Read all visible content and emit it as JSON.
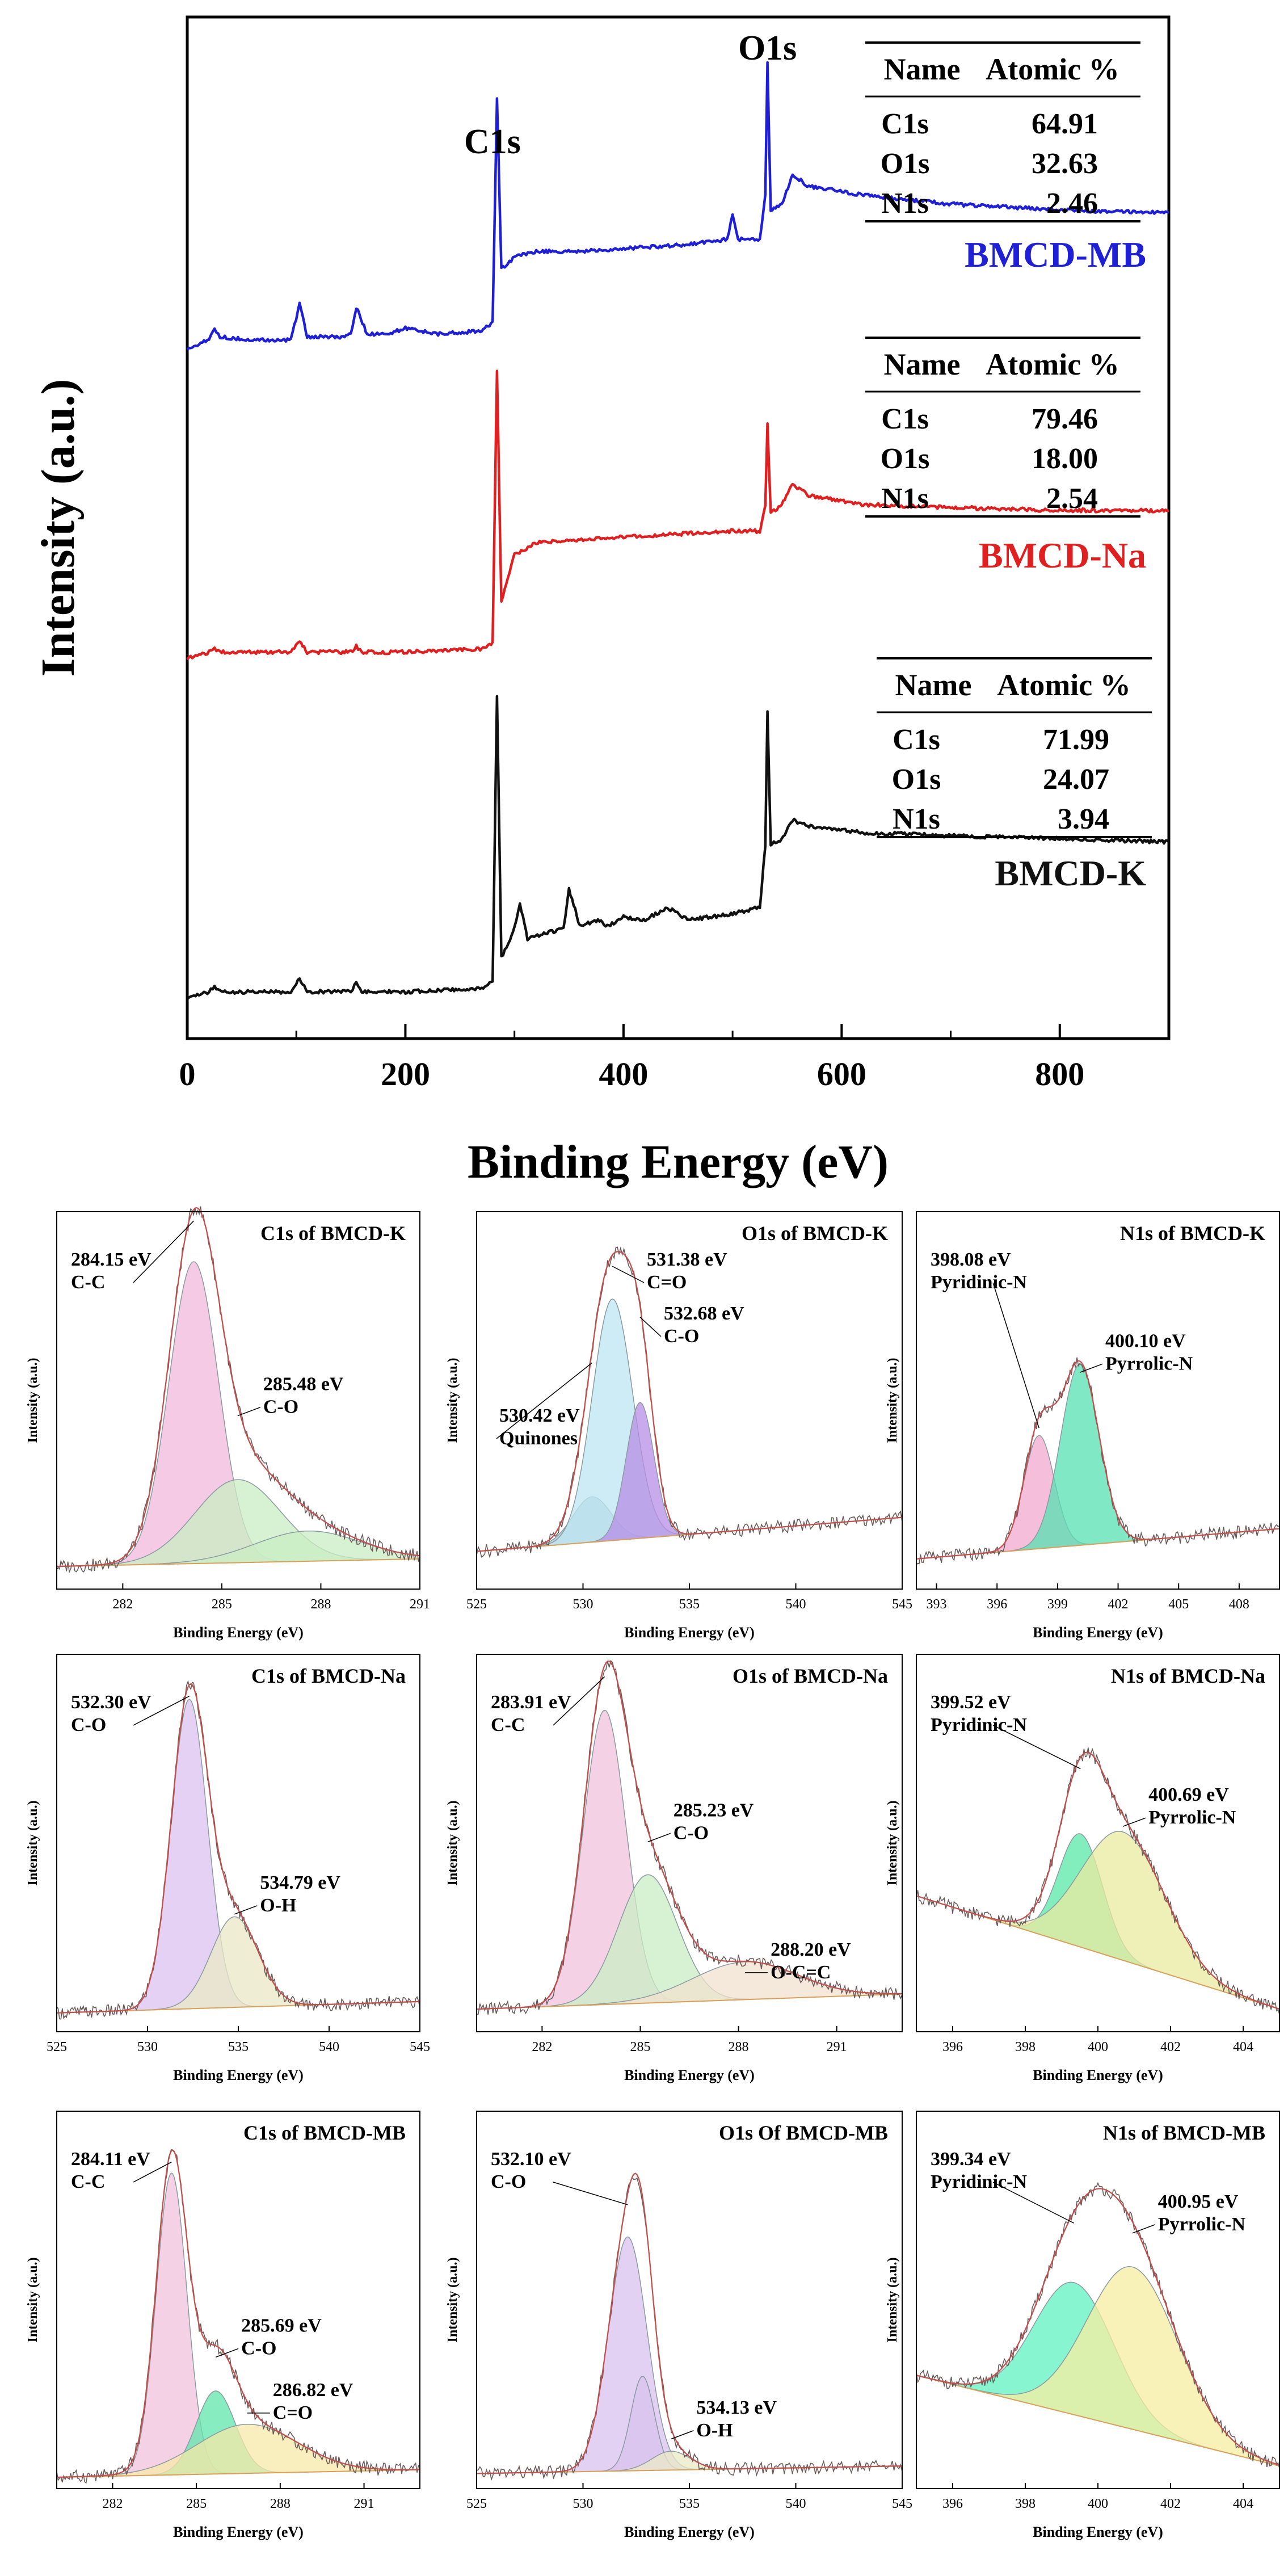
{
  "chart_data": [
    {
      "id": "survey",
      "type": "line",
      "xlabel": "Binding Energy (eV)",
      "ylabel": "Intensity (a.u.)",
      "xlim": [
        0,
        900
      ],
      "xticks": [
        0,
        200,
        400,
        600,
        800
      ],
      "grid": false,
      "peak_labels": [
        {
          "text": "C1s",
          "x": 285
        },
        {
          "text": "O1s",
          "x": 532
        }
      ],
      "series": [
        {
          "name": "BMCD-MB",
          "color": "#1f1fd6",
          "x": [
            0,
            20,
            25,
            30,
            60,
            95,
            103,
            110,
            140,
            150,
            155,
            165,
            185,
            200,
            230,
            270,
            280,
            284,
            288,
            300,
            320,
            360,
            400,
            450,
            495,
            500,
            505,
            525,
            530,
            532,
            535,
            545,
            555,
            570,
            620,
            700,
            800,
            900
          ],
          "y": [
            0.03,
            0.06,
            0.1,
            0.07,
            0.06,
            0.06,
            0.18,
            0.07,
            0.07,
            0.08,
            0.17,
            0.08,
            0.08,
            0.1,
            0.08,
            0.09,
            0.12,
            0.88,
            0.3,
            0.34,
            0.36,
            0.36,
            0.37,
            0.38,
            0.4,
            0.48,
            0.4,
            0.4,
            0.55,
            1.0,
            0.5,
            0.52,
            0.62,
            0.58,
            0.55,
            0.52,
            0.5,
            0.49
          ]
        },
        {
          "name": "BMCD-Na",
          "color": "#e02020",
          "x": [
            0,
            20,
            25,
            30,
            60,
            95,
            103,
            110,
            150,
            155,
            160,
            200,
            270,
            280,
            284,
            288,
            300,
            320,
            360,
            400,
            450,
            500,
            525,
            530,
            532,
            535,
            545,
            555,
            570,
            620,
            700,
            800,
            900
          ],
          "y": [
            0.03,
            0.05,
            0.06,
            0.05,
            0.05,
            0.05,
            0.09,
            0.05,
            0.05,
            0.07,
            0.05,
            0.05,
            0.06,
            0.08,
            1.0,
            0.22,
            0.38,
            0.42,
            0.43,
            0.44,
            0.45,
            0.46,
            0.46,
            0.55,
            0.82,
            0.52,
            0.55,
            0.62,
            0.58,
            0.55,
            0.54,
            0.53,
            0.53
          ]
        },
        {
          "name": "BMCD-K",
          "color": "#111111",
          "x": [
            0,
            20,
            25,
            30,
            60,
            95,
            103,
            110,
            150,
            155,
            160,
            200,
            270,
            280,
            284,
            288,
            296,
            300,
            305,
            312,
            330,
            345,
            350,
            360,
            378,
            385,
            400,
            420,
            440,
            460,
            500,
            525,
            530,
            532,
            535,
            545,
            555,
            570,
            620,
            700,
            800,
            900
          ],
          "y": [
            0.03,
            0.05,
            0.07,
            0.05,
            0.05,
            0.05,
            0.09,
            0.05,
            0.05,
            0.08,
            0.05,
            0.05,
            0.06,
            0.08,
            1.0,
            0.16,
            0.22,
            0.26,
            0.33,
            0.22,
            0.24,
            0.25,
            0.38,
            0.26,
            0.28,
            0.26,
            0.29,
            0.28,
            0.32,
            0.28,
            0.3,
            0.32,
            0.52,
            0.95,
            0.52,
            0.54,
            0.6,
            0.58,
            0.56,
            0.55,
            0.54,
            0.53
          ]
        }
      ],
      "tables": [
        {
          "sample": "BMCD-MB",
          "headers": [
            "Name",
            "Atomic %"
          ],
          "rows": [
            [
              "C1s",
              "64.91"
            ],
            [
              "O1s",
              "32.63"
            ],
            [
              "N1s",
              "2.46"
            ]
          ]
        },
        {
          "sample": "BMCD-Na",
          "headers": [
            "Name",
            "Atomic %"
          ],
          "rows": [
            [
              "C1s",
              "79.46"
            ],
            [
              "O1s",
              "18.00"
            ],
            [
              "N1s",
              "2.54"
            ]
          ]
        },
        {
          "sample": "BMCD-K",
          "headers": [
            "Name",
            "Atomic %"
          ],
          "rows": [
            [
              "C1s",
              "71.99"
            ],
            [
              "O1s",
              "24.07"
            ],
            [
              "N1s",
              "3.94"
            ]
          ]
        }
      ]
    },
    {
      "id": "c1s-k",
      "type": "line",
      "title": "C1s of BMCD-K",
      "xlabel": "Binding Energy (eV)",
      "ylabel": "Intensity (a.u.)",
      "xlim": [
        280,
        291
      ],
      "xticks": [
        282,
        285,
        288,
        291
      ],
      "baseline": {
        "a": 0.06,
        "b": 0.02
      },
      "components": [
        {
          "center": 284.15,
          "height": 0.8,
          "width": 0.75,
          "color": "#f2b8dc"
        },
        {
          "center": 285.48,
          "height": 0.22,
          "width": 1.3,
          "color": "#c9eec3"
        },
        {
          "center": 287.6,
          "height": 0.08,
          "width": 1.6,
          "color": "#c9eec3"
        }
      ],
      "annotations": [
        {
          "text": "284.15 eV",
          "sub": "C-C",
          "x": 284.15
        },
        {
          "text": "285.48 eV",
          "sub": "C-O",
          "x": 285.48
        }
      ]
    },
    {
      "id": "o1s-k",
      "type": "line",
      "title": "O1s of BMCD-K",
      "xlabel": "Binding Energy (eV)",
      "ylabel": "Intensity (a.u.)",
      "xlim": [
        525,
        545
      ],
      "xticks": [
        525,
        530,
        535,
        540,
        545
      ],
      "baseline": {
        "a": 0.1,
        "b": 0.09
      },
      "components": [
        {
          "center": 530.42,
          "height": 0.12,
          "width": 0.9,
          "color": "#a9c7d4"
        },
        {
          "center": 531.38,
          "height": 0.64,
          "width": 0.95,
          "color": "#bde6f2"
        },
        {
          "center": 532.68,
          "height": 0.36,
          "width": 0.65,
          "color": "#b78de6"
        }
      ],
      "annotations": [
        {
          "text": "531.38 eV",
          "sub": "C=O",
          "x": 531.38
        },
        {
          "text": "532.68 eV",
          "sub": "C-O",
          "x": 532.68
        },
        {
          "text": "530.42 eV",
          "sub": "Quinones",
          "x": 530.42
        }
      ]
    },
    {
      "id": "n1s-k",
      "type": "line",
      "title": "N1s of BMCD-K",
      "xlabel": "Binding Energy (eV)",
      "ylabel": "Intensity (a.u.)",
      "xlim": [
        392,
        410
      ],
      "xticks": [
        393,
        396,
        399,
        402,
        405,
        408
      ],
      "baseline": {
        "a": 0.08,
        "b": 0.08
      },
      "components": [
        {
          "center": 398.08,
          "height": 0.3,
          "width": 0.75,
          "color": "#f2a8cf"
        },
        {
          "center": 400.1,
          "height": 0.48,
          "width": 0.95,
          "color": "#56e0b0"
        }
      ],
      "annotations": [
        {
          "text": "398.08 eV",
          "sub": "Pyridinic-N",
          "x": 398.08
        },
        {
          "text": "400.10 eV",
          "sub": "Pyrrolic-N",
          "x": 400.1
        }
      ]
    },
    {
      "id": "c1s-na",
      "type": "line",
      "title": "C1s of BMCD-Na",
      "xlabel": "Binding Energy (eV)",
      "ylabel": "Intensity (a.u.)",
      "xlim": [
        525,
        545
      ],
      "xticks": [
        525,
        530,
        535,
        540,
        545
      ],
      "baseline": {
        "a": 0.05,
        "b": 0.03
      },
      "components": [
        {
          "center": 532.3,
          "height": 0.82,
          "width": 1.0,
          "color": "#dcc2ef"
        },
        {
          "center": 534.79,
          "height": 0.24,
          "width": 1.3,
          "color": "#e9e8c5"
        }
      ],
      "annotations": [
        {
          "text": "532.30 eV",
          "sub": "C-O",
          "x": 532.3
        },
        {
          "text": "534.79 eV",
          "sub": "O-H",
          "x": 534.79
        }
      ]
    },
    {
      "id": "o1s-na",
      "type": "line",
      "title": "O1s of BMCD-Na",
      "xlabel": "Binding Energy (eV)",
      "ylabel": "Intensity (a.u.)",
      "xlim": [
        280,
        293
      ],
      "xticks": [
        282,
        285,
        288,
        291
      ],
      "baseline": {
        "a": 0.06,
        "b": 0.04
      },
      "components": [
        {
          "center": 283.91,
          "height": 0.78,
          "width": 0.65,
          "color": "#f2c2dc"
        },
        {
          "center": 285.23,
          "height": 0.34,
          "width": 0.9,
          "color": "#c9eec3"
        },
        {
          "center": 288.2,
          "height": 0.1,
          "width": 1.6,
          "color": "#f2e2cf"
        }
      ],
      "annotations": [
        {
          "text": "283.91 eV",
          "sub": "C-C",
          "x": 283.91
        },
        {
          "text": "285.23 eV",
          "sub": "C-O",
          "x": 285.23
        },
        {
          "text": "288.20 eV",
          "sub": "O-C=C",
          "x": 288.2
        }
      ]
    },
    {
      "id": "n1s-na",
      "type": "line",
      "title": "N1s of BMCD-Na",
      "xlabel": "Binding Energy (eV)",
      "ylabel": "Intensity (a.u.)",
      "xlim": [
        395,
        405
      ],
      "xticks": [
        396,
        398,
        400,
        402,
        404
      ],
      "baseline": {
        "a": 0.36,
        "b": -0.3
      },
      "components": [
        {
          "center": 399.52,
          "height": 0.3,
          "width": 0.6,
          "color": "#58e8a8"
        },
        {
          "center": 400.69,
          "height": 0.34,
          "width": 1.15,
          "color": "#eaeaa0"
        }
      ],
      "annotations": [
        {
          "text": "399.52 eV",
          "sub": "Pyridinic-N",
          "x": 399.52
        },
        {
          "text": "400.69 eV",
          "sub": "Pyrrolic-N",
          "x": 400.69
        }
      ]
    },
    {
      "id": "c1s-mb",
      "type": "line",
      "title": "C1s of BMCD-MB",
      "xlabel": "Binding Energy (eV)",
      "ylabel": "Intensity (a.u.)",
      "xlim": [
        280,
        293
      ],
      "xticks": [
        282,
        285,
        288,
        291
      ],
      "baseline": {
        "a": 0.03,
        "b": 0.02
      },
      "components": [
        {
          "center": 284.11,
          "height": 0.8,
          "width": 0.55,
          "color": "#f2c2dc"
        },
        {
          "center": 285.69,
          "height": 0.22,
          "width": 0.7,
          "color": "#5fe6aa"
        },
        {
          "center": 286.82,
          "height": 0.13,
          "width": 1.8,
          "color": "#f5e8a8"
        }
      ],
      "annotations": [
        {
          "text": "284.11 eV",
          "sub": "C-C",
          "x": 284.11
        },
        {
          "text": "285.69 eV",
          "sub": "C-O",
          "x": 285.69
        },
        {
          "text": "286.82 eV",
          "sub": "C=O",
          "x": 286.82
        }
      ]
    },
    {
      "id": "o1s-mb",
      "type": "line",
      "title": "O1s Of BMCD-MB",
      "xlabel": "Binding Energy (eV)",
      "ylabel": "Intensity (a.u.)",
      "xlim": [
        525,
        545
      ],
      "xticks": [
        525,
        530,
        535,
        540,
        545
      ],
      "baseline": {
        "a": 0.04,
        "b": 0.02
      },
      "components": [
        {
          "center": 532.1,
          "height": 0.62,
          "width": 0.9,
          "color": "#d8c2ef"
        },
        {
          "center": 532.8,
          "height": 0.25,
          "width": 0.55,
          "color": "#d8c2ef"
        },
        {
          "center": 534.13,
          "height": 0.05,
          "width": 0.9,
          "color": "#eaeac5"
        }
      ],
      "annotations": [
        {
          "text": "532.10 eV",
          "sub": "C-O",
          "x": 532.1
        },
        {
          "text": "534.13 eV",
          "sub": "O-H",
          "x": 534.13
        }
      ]
    },
    {
      "id": "n1s-mb",
      "type": "line",
      "title": "N1s of BMCD-MB",
      "xlabel": "Binding Energy (eV)",
      "ylabel": "Intensity (a.u.)",
      "xlim": [
        395,
        405
      ],
      "xticks": [
        396,
        398,
        400,
        402,
        404
      ],
      "baseline": {
        "a": 0.3,
        "b": -0.24
      },
      "components": [
        {
          "center": 399.34,
          "height": 0.35,
          "width": 1.1,
          "color": "#5ff2c0"
        },
        {
          "center": 400.95,
          "height": 0.43,
          "width": 1.25,
          "color": "#f5eea0"
        }
      ],
      "annotations": [
        {
          "text": "399.34 eV",
          "sub": "Pyridinic-N",
          "x": 399.34
        },
        {
          "text": "400.95 eV",
          "sub": "Pyrrolic-N",
          "x": 400.95
        }
      ]
    }
  ]
}
